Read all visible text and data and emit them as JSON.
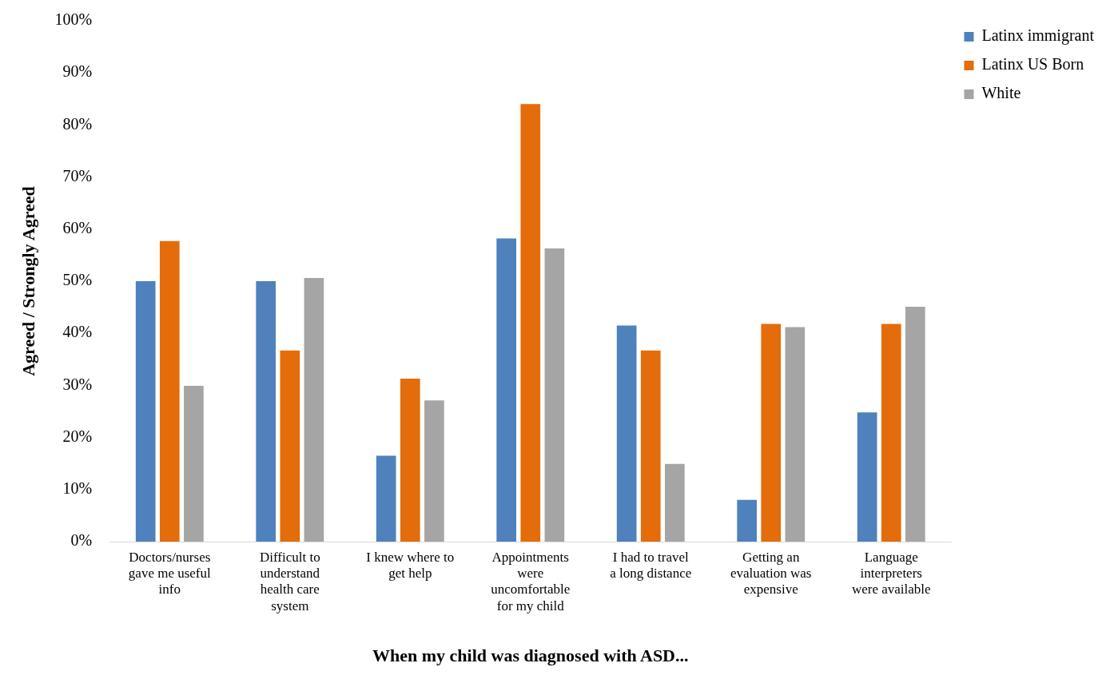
{
  "chart_data": {
    "type": "bar",
    "xlabel": "When my child was diagnosed with ASD...",
    "ylabel": "Agreed / Strongly Agreed",
    "categories": [
      "Doctors/nurses gave me useful info",
      "Difficult to understand health care system",
      "I knew where to get help",
      "Appointments were uncomfortable for my child",
      "I had to travel a long distance",
      "Getting an evaluation was expensive",
      "Language interpreters were available"
    ],
    "series": [
      {
        "name": "Latinx immigrant",
        "color": "#4f81bd",
        "values": [
          50,
          50,
          16.5,
          58.2,
          41.5,
          8,
          24.8
        ]
      },
      {
        "name": "Latinx US Born",
        "color": "#e46c0a",
        "values": [
          57.7,
          36.7,
          31.3,
          84,
          36.7,
          41.8,
          41.8
        ]
      },
      {
        "name": "White",
        "color": "#a5a5a5",
        "values": [
          29.9,
          50.6,
          27.1,
          56.3,
          14.9,
          41.2,
          45.1
        ]
      }
    ],
    "ylim": [
      0,
      100
    ],
    "yticks": [
      {
        "value": 0,
        "label": "0%"
      },
      {
        "value": 10,
        "label": "10%"
      },
      {
        "value": 20,
        "label": "20%"
      },
      {
        "value": 30,
        "label": "30%"
      },
      {
        "value": 40,
        "label": "40%"
      },
      {
        "value": 50,
        "label": "50%"
      },
      {
        "value": 60,
        "label": "60%"
      },
      {
        "value": 70,
        "label": "70%"
      },
      {
        "value": 80,
        "label": "80%"
      },
      {
        "value": 90,
        "label": "90%"
      },
      {
        "value": 100,
        "label": "100%"
      }
    ],
    "grid": false,
    "legend": "top right"
  }
}
